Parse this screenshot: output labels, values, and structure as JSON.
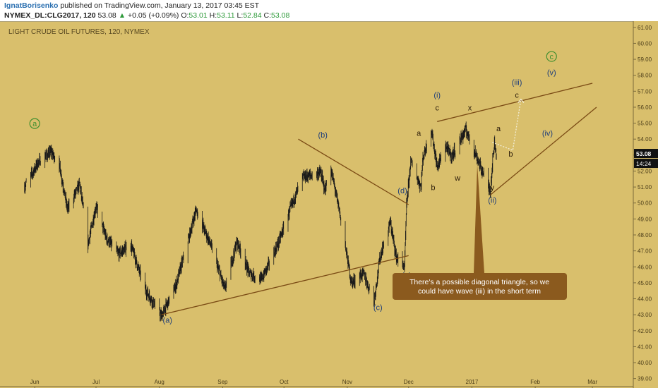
{
  "header": {
    "author": "IgnatBorisenko",
    "published_text": "published on TradingView.com, January 13, 2017 03:45 EST",
    "symbol": "NYMEX_DL:CLG2017, 120",
    "last": "53.08",
    "change_arrow": "▲",
    "change": "+0.05 (+0.09%)",
    "o_label": "O:",
    "o_val": "53.01",
    "h_label": "H:",
    "h_val": "53.11",
    "l_label": "L:",
    "l_val": "52.84",
    "c_label": "C:",
    "c_val": "53.08"
  },
  "colors": {
    "background": "#d9bf6c",
    "candles": "#1a1a1a",
    "trendline": "#7a4a14",
    "wave_blue": "#1d3d7a",
    "wave_dark": "#2a1a08",
    "circle_green": "#3f8f2f",
    "note_bg": "#8b5a1e",
    "price_tag": "#111111"
  },
  "chart_data": {
    "type": "candlestick",
    "title": "LIGHT CRUDE OIL FUTURES, 120, NYMEX",
    "y_range": [
      38.5,
      61.3
    ],
    "y_ticks": [
      "39.00",
      "40.00",
      "41.00",
      "42.00",
      "43.00",
      "44.00",
      "45.00",
      "46.00",
      "47.00",
      "48.00",
      "49.00",
      "50.00",
      "51.00",
      "52.00",
      "53.00",
      "54.00",
      "55.00",
      "56.00",
      "57.00",
      "58.00",
      "59.00",
      "60.00",
      "61.00"
    ],
    "x_ticks": [
      "Jun",
      "Jul",
      "Aug",
      "Sep",
      "Oct",
      "Nov",
      "Dec",
      "2017",
      "Feb",
      "Mar"
    ],
    "price_path": [
      [
        "2016-05-27",
        51.0
      ],
      [
        "2016-06-03",
        52.6
      ],
      [
        "2016-06-09",
        53.2
      ],
      [
        "2016-06-13",
        52.4
      ],
      [
        "2016-06-17",
        49.6
      ],
      [
        "2016-06-23",
        51.2
      ],
      [
        "2016-06-27",
        47.4
      ],
      [
        "2016-07-01",
        49.8
      ],
      [
        "2016-07-06",
        47.8
      ],
      [
        "2016-07-12",
        46.8
      ],
      [
        "2016-07-18",
        47.4
      ],
      [
        "2016-07-25",
        44.6
      ],
      [
        "2016-08-02",
        42.9
      ],
      [
        "2016-08-09",
        44.8
      ],
      [
        "2016-08-15",
        47.6
      ],
      [
        "2016-08-19",
        49.6
      ],
      [
        "2016-08-26",
        47.4
      ],
      [
        "2016-09-02",
        44.6
      ],
      [
        "2016-09-08",
        47.6
      ],
      [
        "2016-09-14",
        45.6
      ],
      [
        "2016-09-20",
        45.2
      ],
      [
        "2016-09-28",
        47.4
      ],
      [
        "2016-10-04",
        49.6
      ],
      [
        "2016-10-10",
        51.6
      ],
      [
        "2016-10-19",
        51.9
      ],
      [
        "2016-10-21",
        50.8
      ],
      [
        "2016-10-24",
        52.1
      ],
      [
        "2016-10-28",
        49.6
      ],
      [
        "2016-11-03",
        45.0
      ],
      [
        "2016-11-09",
        45.6
      ],
      [
        "2016-11-14",
        43.8
      ],
      [
        "2016-11-17",
        46.6
      ],
      [
        "2016-11-22",
        48.8
      ],
      [
        "2016-11-25",
        46.6
      ],
      [
        "2016-11-29",
        46.0
      ],
      [
        "2016-11-30",
        49.8
      ],
      [
        "2016-12-02",
        52.6
      ],
      [
        "2016-12-07",
        51.0
      ],
      [
        "2016-12-08",
        52.8
      ],
      [
        "2016-12-12",
        54.7
      ],
      [
        "2016-12-15",
        52.2
      ],
      [
        "2016-12-19",
        53.6
      ],
      [
        "2016-12-22",
        52.9
      ],
      [
        "2016-12-29",
        54.6
      ],
      [
        "2017-01-03",
        53.0
      ],
      [
        "2017-01-09",
        51.0
      ],
      [
        "2017-01-10",
        50.8
      ],
      [
        "2017-01-11",
        52.4
      ],
      [
        "2017-01-12",
        53.8
      ],
      [
        "2017-01-13",
        53.08
      ]
    ],
    "current_price": "53.08",
    "countdown": "14:24",
    "trendlines": [
      {
        "from": [
          "2016-08-02",
          43.0
        ],
        "to": [
          "2016-12-01",
          46.7
        ]
      },
      {
        "from": [
          "2016-10-08",
          54.0
        ],
        "to": [
          "2016-12-01",
          49.9
        ]
      },
      {
        "from": [
          "2016-12-15",
          55.1
        ],
        "to": [
          "2017-03-01",
          57.5
        ]
      },
      {
        "from": [
          "2017-01-10",
          50.5
        ],
        "to": [
          "2017-03-03",
          56.0
        ]
      }
    ],
    "forecast_path": [
      [
        "2017-01-11",
        53.8
      ],
      [
        "2017-01-21",
        53.3
      ],
      [
        "2017-01-25",
        56.5
      ]
    ],
    "annotations": [
      {
        "text": "a",
        "date": "2016-06-01",
        "price": 54.8,
        "style": "green_circle"
      },
      {
        "text": "(a)",
        "date": "2016-08-05",
        "price": 42.5,
        "style": "blue"
      },
      {
        "text": "(b)",
        "date": "2016-10-20",
        "price": 54.1,
        "style": "blue"
      },
      {
        "text": "(c)",
        "date": "2016-11-16",
        "price": 43.3,
        "style": "blue"
      },
      {
        "text": "(d)",
        "date": "2016-11-28",
        "price": 50.6,
        "style": "blue"
      },
      {
        "text": "(e)",
        "date": "2016-11-30",
        "price": 45.3,
        "style": "blue"
      },
      {
        "text": "b",
        "date": "2016-11-30",
        "price": 44.4,
        "style": "green_circle"
      },
      {
        "text": "a",
        "date": "2016-12-06",
        "price": 54.2,
        "style": "dark"
      },
      {
        "text": "b",
        "date": "2016-12-13",
        "price": 50.8,
        "style": "dark"
      },
      {
        "text": "(i)",
        "date": "2016-12-15",
        "price": 56.6,
        "style": "blue"
      },
      {
        "text": "c",
        "date": "2016-12-15",
        "price": 55.8,
        "style": "dark"
      },
      {
        "text": "w",
        "date": "2016-12-25",
        "price": 51.4,
        "style": "dark"
      },
      {
        "text": "x",
        "date": "2016-12-31",
        "price": 55.8,
        "style": "dark"
      },
      {
        "text": "y",
        "date": "2017-01-11",
        "price": 50.8,
        "style": "dark"
      },
      {
        "text": "(ii)",
        "date": "2017-01-11",
        "price": 50.0,
        "style": "blue"
      },
      {
        "text": "a",
        "date": "2017-01-14",
        "price": 54.5,
        "style": "dark"
      },
      {
        "text": "b",
        "date": "2017-01-20",
        "price": 52.9,
        "style": "dark"
      },
      {
        "text": "(iii)",
        "date": "2017-01-23",
        "price": 57.4,
        "style": "blue"
      },
      {
        "text": "c",
        "date": "2017-01-23",
        "price": 56.6,
        "style": "dark"
      },
      {
        "text": "(iv)",
        "date": "2017-02-07",
        "price": 54.2,
        "style": "blue"
      },
      {
        "text": "(v)",
        "date": "2017-02-09",
        "price": 58.0,
        "style": "blue"
      },
      {
        "text": "c",
        "date": "2017-02-09",
        "price": 59.0,
        "style": "green_circle"
      }
    ],
    "note": "There's a possible diagonal triangle, so we could have wave (iii) in the short term"
  }
}
